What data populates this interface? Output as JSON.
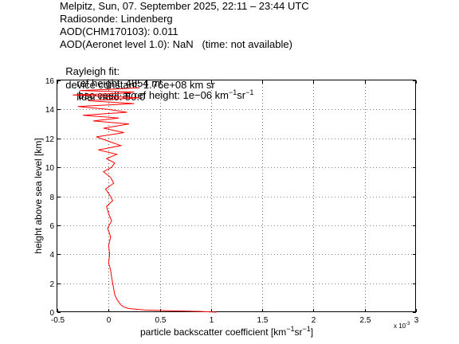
{
  "header": {
    "line1": "Melpitz, Sun, 07. September 2025, 22:11 – 23:44 UTC",
    "line2": "Radiosonde: Lindenberg",
    "line3": "AOD(CHM170103): 0.011",
    "line4": "AOD(Aeronet level 1.0): NaN   (time: not available)",
    "rayleigh_label": "Rayleigh fit:",
    "ref_height": "ref height: 4854 m",
    "bsc_coeff_prefix": "bsc coeff at ref height: 1e−06 km",
    "unit_exp1": "−1",
    "unit_sr": "sr",
    "unit_exp2": "−1",
    "device_constant": "device constant: 1.76e+08 km sr",
    "lidar_ratio": "lidar ratio: 50.0"
  },
  "chart_data": {
    "type": "line",
    "title": "",
    "xlabel_main": "particle backscatter coefficient [km",
    "xlabel_exp1": "−1",
    "xlabel_sr": "sr",
    "xlabel_exp2": "−1",
    "xlabel_end": "]",
    "ylabel": "height above sea level [km]",
    "x_multiplier_label": "x 10",
    "x_multiplier_exp": "-3",
    "xlim": [
      -0.5,
      3.0
    ],
    "ylim": [
      0,
      16
    ],
    "xticks": [
      -0.5,
      0,
      0.5,
      1,
      1.5,
      2,
      2.5,
      3
    ],
    "xtick_labels": [
      "-0.5",
      "0",
      "0.5",
      "1",
      "1.5",
      "2",
      "2.5",
      "3"
    ],
    "yticks": [
      0,
      2,
      4,
      6,
      8,
      10,
      12,
      14,
      16
    ],
    "ytick_labels": [
      "0",
      "2",
      "4",
      "6",
      "8",
      "10",
      "12",
      "14",
      "16"
    ],
    "grid": true,
    "line_color": "#ff0000",
    "series": [
      {
        "x": [
          1.05,
          0.9,
          0.6,
          0.35,
          0.2,
          0.15,
          0.12,
          0.1,
          0.08,
          0.06,
          0.05,
          0.04,
          0.03,
          0.02,
          0.0,
          0.01,
          0.0,
          0.02,
          -0.01,
          0.03,
          0.0,
          -0.02,
          0.04,
          0.01,
          -0.03,
          0.05,
          0.02,
          -0.05,
          0.03,
          0.06,
          -0.02,
          0.08,
          -0.1,
          0.12,
          0.0,
          -0.12,
          0.15,
          -0.05,
          0.2,
          -0.15,
          0.1,
          -0.25,
          0.18,
          0.0,
          -0.3,
          0.25,
          -0.2,
          0.3,
          -0.35,
          0.1,
          0.25,
          -0.28,
          0.05,
          0.3
        ],
        "y": [
          0.0,
          0.05,
          0.1,
          0.15,
          0.25,
          0.35,
          0.5,
          0.7,
          0.9,
          1.2,
          1.6,
          2.0,
          2.4,
          2.9,
          3.4,
          4.0,
          4.6,
          5.2,
          5.8,
          6.3,
          6.8,
          7.3,
          7.7,
          8.1,
          8.5,
          8.9,
          9.3,
          9.7,
          10.0,
          10.3,
          10.6,
          10.9,
          11.2,
          11.5,
          11.8,
          12.1,
          12.4,
          12.7,
          13.0,
          13.2,
          13.4,
          13.6,
          13.8,
          14.0,
          14.2,
          14.4,
          14.6,
          14.8,
          15.0,
          15.1,
          15.2,
          15.3,
          15.4,
          15.5
        ]
      }
    ]
  }
}
